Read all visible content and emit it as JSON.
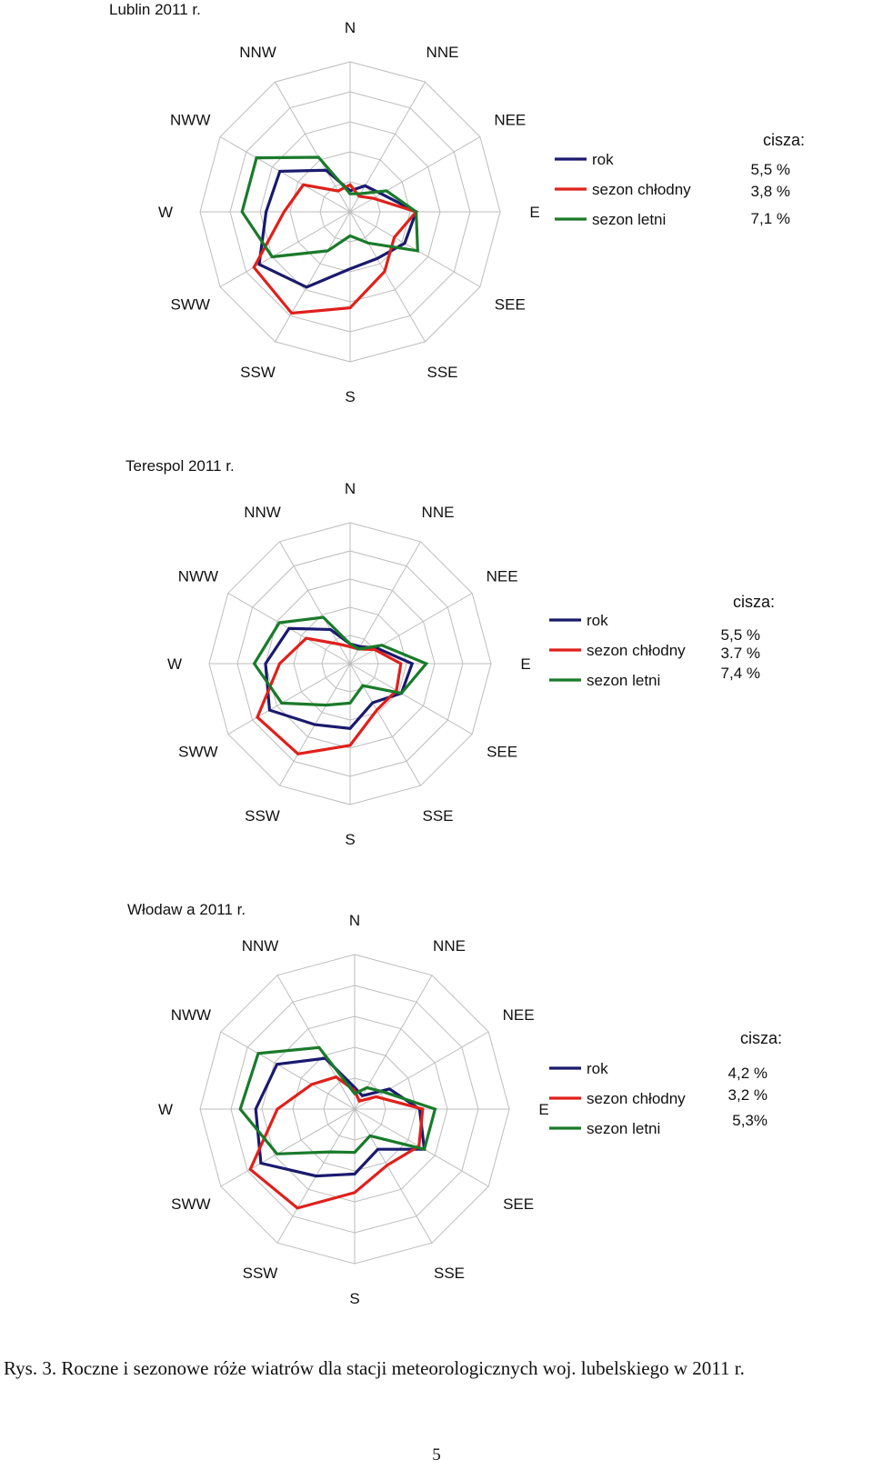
{
  "directions": [
    "N",
    "NNE",
    "NEE",
    "E",
    "SEE",
    "SSE",
    "S",
    "SSW",
    "SWW",
    "W",
    "NWW",
    "NNW"
  ],
  "colors": {
    "rok": "#1a1a6e",
    "sezon_chlodny": "#e0201b",
    "sezon_letni": "#1a7a2a",
    "grid": "#bdbdbd"
  },
  "chart_data": [
    {
      "type": "radar",
      "title": "Lublin 2011 r.",
      "categories": [
        "N",
        "NNE",
        "NEE",
        "E",
        "SEE",
        "SSE",
        "S",
        "SSW",
        "SWW",
        "W",
        "NWW",
        "NNW"
      ],
      "rmax": 5,
      "series": [
        {
          "name": "rok",
          "values": [
            0.7,
            1.0,
            1.2,
            2.2,
            2.1,
            1.8,
            1.9,
            2.9,
            3.5,
            2.8,
            2.7,
            1.6
          ]
        },
        {
          "name": "sezon chłodny",
          "values": [
            0.9,
            0.6,
            0.9,
            2.2,
            1.7,
            2.3,
            3.2,
            3.9,
            3.7,
            2.2,
            1.8,
            0.8
          ]
        },
        {
          "name": "sezon letni",
          "values": [
            0.6,
            0.7,
            1.4,
            2.2,
            2.6,
            1.2,
            0.8,
            1.5,
            3.0,
            3.6,
            3.6,
            2.1
          ]
        }
      ],
      "calm_label": "cisza:",
      "calm_values": [
        "5,5 %",
        "3,8 %",
        "7,1 %"
      ]
    },
    {
      "type": "radar",
      "title": "Terespol 2011 r.",
      "categories": [
        "N",
        "NNE",
        "NEE",
        "E",
        "SEE",
        "SSE",
        "S",
        "SSW",
        "SWW",
        "W",
        "NWW",
        "NNW"
      ],
      "rmax": 5,
      "series": [
        {
          "name": "rok",
          "values": [
            0.7,
            0.7,
            1.1,
            2.2,
            2.1,
            1.6,
            2.3,
            2.5,
            3.3,
            3.0,
            2.5,
            1.4
          ]
        },
        {
          "name": "sezon chłodny",
          "values": [
            0.6,
            0.6,
            1.0,
            1.8,
            1.9,
            1.9,
            2.9,
            3.7,
            3.8,
            2.5,
            1.8,
            0.8
          ]
        },
        {
          "name": "sezon letni",
          "values": [
            0.7,
            0.6,
            1.3,
            2.7,
            2.1,
            0.9,
            1.4,
            1.7,
            2.8,
            3.4,
            2.9,
            1.9
          ]
        }
      ],
      "calm_label": "cisza:",
      "calm_values": [
        "5,5 %",
        "3.7 %",
        "7,4 %"
      ]
    },
    {
      "type": "radar",
      "title": "Włodaw a 2011 r.",
      "categories": [
        "N",
        "NNE",
        "NEE",
        "E",
        "SEE",
        "SSE",
        "S",
        "SSW",
        "SWW",
        "W",
        "NWW",
        "NNW"
      ],
      "rmax": 5,
      "series": [
        {
          "name": "rok",
          "values": [
            0.7,
            0.5,
            1.3,
            2.1,
            2.6,
            1.5,
            2.1,
            2.5,
            3.5,
            3.2,
            2.9,
            1.9
          ]
        },
        {
          "name": "sezon chłodny",
          "values": [
            0.6,
            0.3,
            0.8,
            2.2,
            2.4,
            2.1,
            2.7,
            3.7,
            3.9,
            2.5,
            1.6,
            1.2
          ]
        },
        {
          "name": "sezon letni",
          "values": [
            0.5,
            0.8,
            1.1,
            2.6,
            2.6,
            1.0,
            1.4,
            1.6,
            2.9,
            3.7,
            3.6,
            2.3
          ]
        }
      ],
      "calm_label": "cisza:",
      "calm_values": [
        "4,2 %",
        "3,2 %",
        "5,3%"
      ]
    }
  ],
  "caption": "Rys. 3. Roczne i sezonowe róże wiatrów dla stacji meteorologicznych woj. lubelskiego w 2011 r.",
  "page_number": "5"
}
